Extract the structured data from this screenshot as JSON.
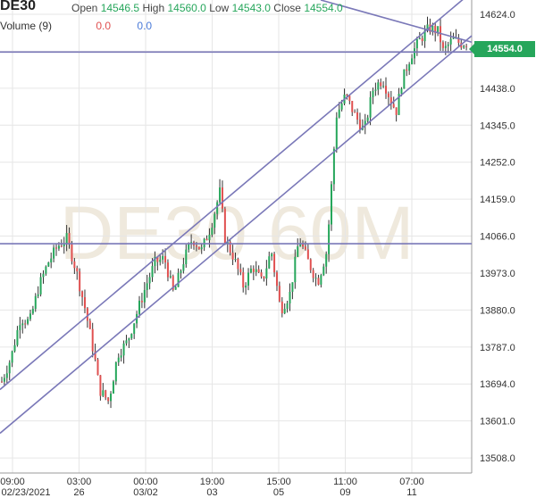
{
  "header": {
    "symbol": "DE30",
    "open_label": "Open",
    "open": "14546.5",
    "high_label": "High",
    "high": "14560.0",
    "low_label": "Low",
    "low": "14543.0",
    "close_label": "Close",
    "close": "14554.0",
    "volume_label": "Volume (9)",
    "volume_a": "0.0",
    "volume_b": "0.0"
  },
  "watermark": "DE30 60M",
  "price_tag": "14554.0",
  "colors": {
    "up": "#26a65b",
    "down": "#e05050",
    "trendline": "#7a78b8",
    "grid": "#e6e6e6",
    "axis": "#333333"
  },
  "chart_data": {
    "type": "candlestick",
    "y_ticks": [
      "14624.0",
      "14531.0",
      "14438.0",
      "14345.0",
      "14252.0",
      "14159.0",
      "14066.0",
      "13973.0",
      "13880.0",
      "13787.0",
      "13694.0",
      "13601.0",
      "13508.0"
    ],
    "ylim": [
      13470,
      14660
    ],
    "x_ticks": [
      {
        "time": "09:00",
        "date": "02/23/2021"
      },
      {
        "time": "03:00",
        "date": "26"
      },
      {
        "time": "00:00",
        "date": "03/02"
      },
      {
        "time": "19:00",
        "date": "03"
      },
      {
        "time": "15:00",
        "date": "05"
      },
      {
        "time": "11:00",
        "date": "09"
      },
      {
        "time": "07:00",
        "date": "11"
      }
    ],
    "price_path": [
      [
        0,
        13700
      ],
      [
        0.02,
        13760
      ],
      [
        0.04,
        13860
      ],
      [
        0.06,
        13850
      ],
      [
        0.08,
        13940
      ],
      [
        0.1,
        14000
      ],
      [
        0.12,
        14040
      ],
      [
        0.14,
        14060
      ],
      [
        0.16,
        13980
      ],
      [
        0.18,
        13880
      ],
      [
        0.2,
        13760
      ],
      [
        0.21,
        13680
      ],
      [
        0.23,
        13650
      ],
      [
        0.25,
        13770
      ],
      [
        0.27,
        13800
      ],
      [
        0.29,
        13870
      ],
      [
        0.31,
        13940
      ],
      [
        0.33,
        14000
      ],
      [
        0.35,
        14010
      ],
      [
        0.37,
        13920
      ],
      [
        0.39,
        14000
      ],
      [
        0.41,
        14060
      ],
      [
        0.43,
        14030
      ],
      [
        0.45,
        14090
      ],
      [
        0.47,
        14180
      ],
      [
        0.48,
        14060
      ],
      [
        0.5,
        14010
      ],
      [
        0.52,
        13940
      ],
      [
        0.54,
        13990
      ],
      [
        0.56,
        13950
      ],
      [
        0.58,
        14030
      ],
      [
        0.6,
        13880
      ],
      [
        0.62,
        13920
      ],
      [
        0.64,
        14060
      ],
      [
        0.66,
        14000
      ],
      [
        0.68,
        13950
      ],
      [
        0.7,
        14030
      ],
      [
        0.71,
        14200
      ],
      [
        0.72,
        14370
      ],
      [
        0.74,
        14420
      ],
      [
        0.76,
        14370
      ],
      [
        0.78,
        14330
      ],
      [
        0.8,
        14440
      ],
      [
        0.82,
        14460
      ],
      [
        0.84,
        14400
      ],
      [
        0.85,
        14380
      ],
      [
        0.86,
        14450
      ],
      [
        0.88,
        14520
      ],
      [
        0.9,
        14560
      ],
      [
        0.92,
        14590
      ],
      [
        0.94,
        14580
      ],
      [
        0.95,
        14530
      ],
      [
        0.97,
        14560
      ],
      [
        0.99,
        14550
      ],
      [
        1.0,
        14554
      ]
    ],
    "horizontal_levels": [
      14529,
      14047
    ],
    "channel_lines": [
      {
        "from": [
          13680,
          0.0
        ],
        "to": [
          14680,
          1.0
        ]
      },
      {
        "from": [
          13570,
          0.0
        ],
        "to": [
          14570,
          1.0
        ]
      }
    ],
    "resistance_line": {
      "from": [
        14660,
        0.68
      ],
      "to": [
        14554,
        1.0
      ]
    }
  }
}
